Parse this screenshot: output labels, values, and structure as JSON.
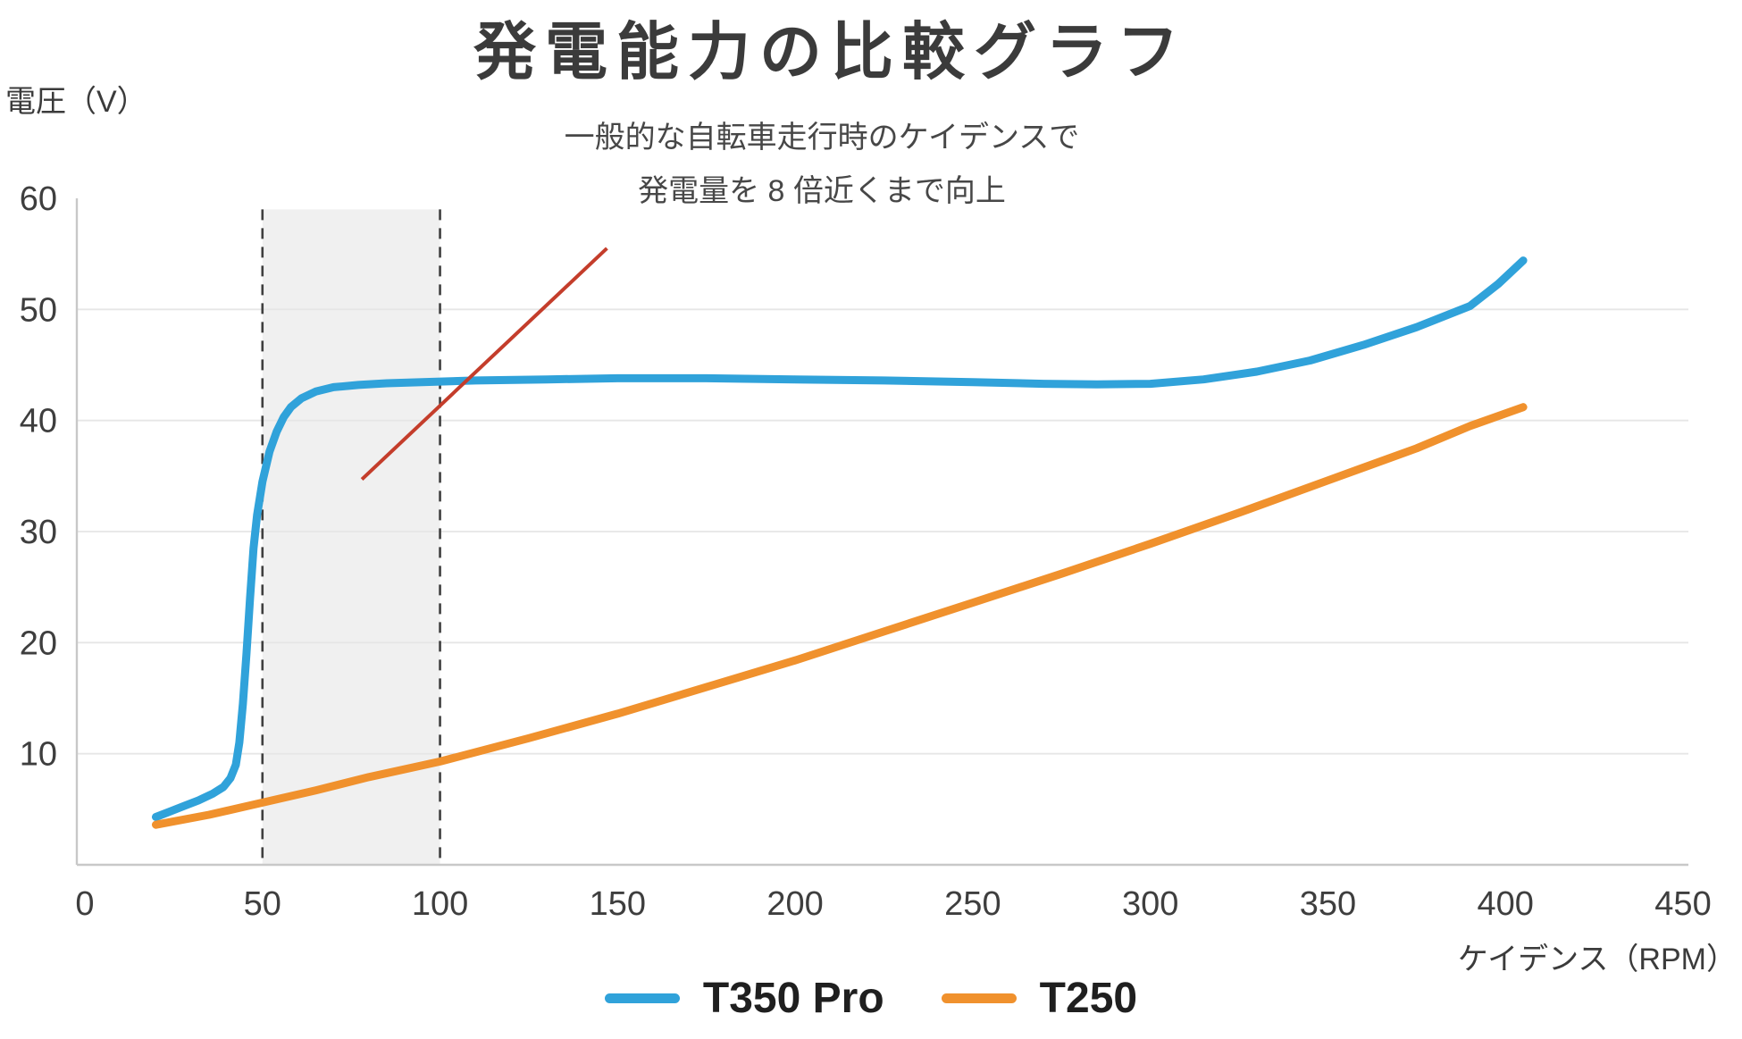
{
  "title": "発電能力の比較グラフ",
  "annotation": {
    "line1": "一般的な自転車走行時のケイデンスで",
    "line2": "発電量を 8 倍近くまで向上"
  },
  "colors": {
    "t350_blue": "#30A2DA",
    "t250_orange": "#F0912D",
    "pointer_red": "#C43D2B",
    "band_fill": "#F0F0F0",
    "band_dash": "#3f3f3f",
    "grid": "#E6E6E6",
    "axis": "#C8C8C8",
    "tick_text": "#3e3e3e"
  },
  "legend": {
    "items": [
      {
        "label": "T350 Pro",
        "color": "#30A2DA"
      },
      {
        "label": "T250",
        "color": "#F0912D"
      }
    ]
  },
  "chart_data": {
    "type": "line",
    "title": "発電能力の比較グラフ",
    "xlabel": "ケイデンス（RPM）",
    "ylabel": "電圧（V）",
    "xlim": [
      0,
      450
    ],
    "ylim": [
      0,
      60
    ],
    "x_ticks": [
      0,
      50,
      100,
      150,
      200,
      250,
      300,
      350,
      400,
      450
    ],
    "y_ticks": [
      10,
      20,
      30,
      40,
      50,
      60
    ],
    "gridlines_at": [
      10,
      20,
      30,
      40,
      50
    ],
    "grid": "horizontal",
    "legend_position": "bottom-center",
    "highlight_band": {
      "x0": 50,
      "x1": 100,
      "y_top": 59,
      "border": "dashed"
    },
    "annotation_pointer": {
      "from": [
        147,
        55.5
      ],
      "to": [
        78,
        34.7
      ]
    },
    "series": [
      {
        "name": "T350 Pro",
        "color": "#30A2DA",
        "points": [
          [
            20,
            4.3
          ],
          [
            24,
            4.8
          ],
          [
            28,
            5.3
          ],
          [
            32,
            5.8
          ],
          [
            36,
            6.4
          ],
          [
            39,
            7.0
          ],
          [
            41,
            7.8
          ],
          [
            42.5,
            9.0
          ],
          [
            43.5,
            11.0
          ],
          [
            44.5,
            14.5
          ],
          [
            45.5,
            19.0
          ],
          [
            46.5,
            24.0
          ],
          [
            47.5,
            28.5
          ],
          [
            48.5,
            31.5
          ],
          [
            50,
            34.5
          ],
          [
            52,
            37.2
          ],
          [
            54,
            39.0
          ],
          [
            56,
            40.3
          ],
          [
            58,
            41.2
          ],
          [
            61,
            42.0
          ],
          [
            65,
            42.6
          ],
          [
            70,
            43.0
          ],
          [
            77,
            43.2
          ],
          [
            85,
            43.35
          ],
          [
            95,
            43.45
          ],
          [
            110,
            43.6
          ],
          [
            130,
            43.7
          ],
          [
            150,
            43.8
          ],
          [
            175,
            43.8
          ],
          [
            200,
            43.7
          ],
          [
            225,
            43.6
          ],
          [
            250,
            43.45
          ],
          [
            270,
            43.3
          ],
          [
            285,
            43.25
          ],
          [
            300,
            43.3
          ],
          [
            315,
            43.7
          ],
          [
            330,
            44.4
          ],
          [
            345,
            45.4
          ],
          [
            360,
            46.8
          ],
          [
            375,
            48.4
          ],
          [
            390,
            50.3
          ],
          [
            398,
            52.3
          ],
          [
            405,
            54.4
          ]
        ]
      },
      {
        "name": "T250",
        "color": "#F0912D",
        "points": [
          [
            20,
            3.6
          ],
          [
            35,
            4.5
          ],
          [
            50,
            5.6
          ],
          [
            65,
            6.7
          ],
          [
            80,
            7.9
          ],
          [
            100,
            9.3
          ],
          [
            125,
            11.4
          ],
          [
            150,
            13.6
          ],
          [
            175,
            16.0
          ],
          [
            200,
            18.4
          ],
          [
            225,
            21.0
          ],
          [
            250,
            23.6
          ],
          [
            275,
            26.2
          ],
          [
            300,
            28.9
          ],
          [
            325,
            31.7
          ],
          [
            350,
            34.6
          ],
          [
            375,
            37.5
          ],
          [
            390,
            39.5
          ],
          [
            405,
            41.2
          ]
        ]
      }
    ]
  }
}
